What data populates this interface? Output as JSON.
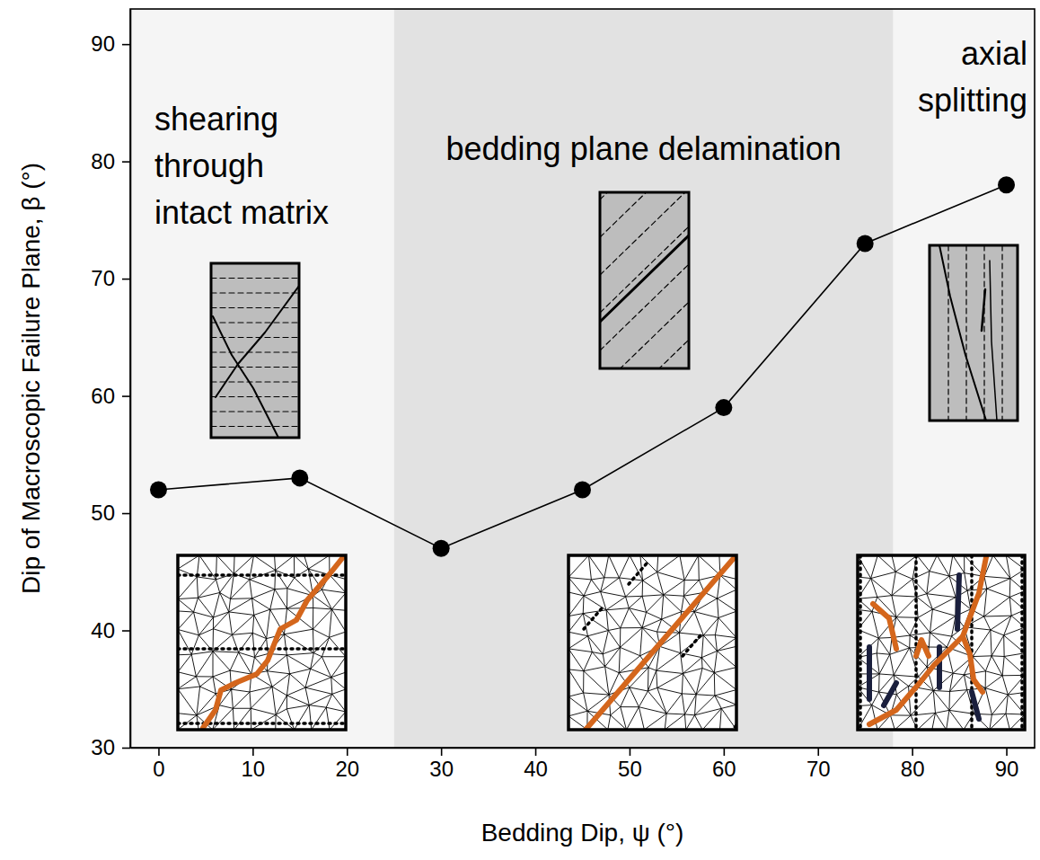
{
  "chart_data": {
    "type": "line",
    "x": [
      0,
      15,
      30,
      45,
      60,
      75,
      90
    ],
    "values": [
      52,
      53,
      47,
      52,
      59,
      73,
      78
    ],
    "color": "#000000",
    "marker": "circle",
    "line_style": "solid",
    "xlabel": "Bedding Dip, ψ (°)",
    "ylabel": "Dip of Macroscopic Failure Plane, β (°)",
    "xlim": [
      -3,
      93
    ],
    "ylim": [
      30,
      93
    ],
    "xticks": [
      0,
      10,
      20,
      30,
      40,
      50,
      60,
      70,
      80,
      90
    ],
    "yticks": [
      30,
      40,
      50,
      60,
      70,
      80,
      90
    ],
    "regions": [
      {
        "lines": [
          "shearing",
          "through",
          "intact matrix"
        ],
        "from": -3,
        "to": 25,
        "color": "#f5f5f5"
      },
      {
        "lines": [
          "bedding plane delamination"
        ],
        "from": 25,
        "to": 78,
        "color": "#e2e2e2"
      },
      {
        "lines": [
          "axial",
          "splitting"
        ],
        "from": 78,
        "to": 93,
        "color": "#f5f5f5"
      }
    ]
  }
}
